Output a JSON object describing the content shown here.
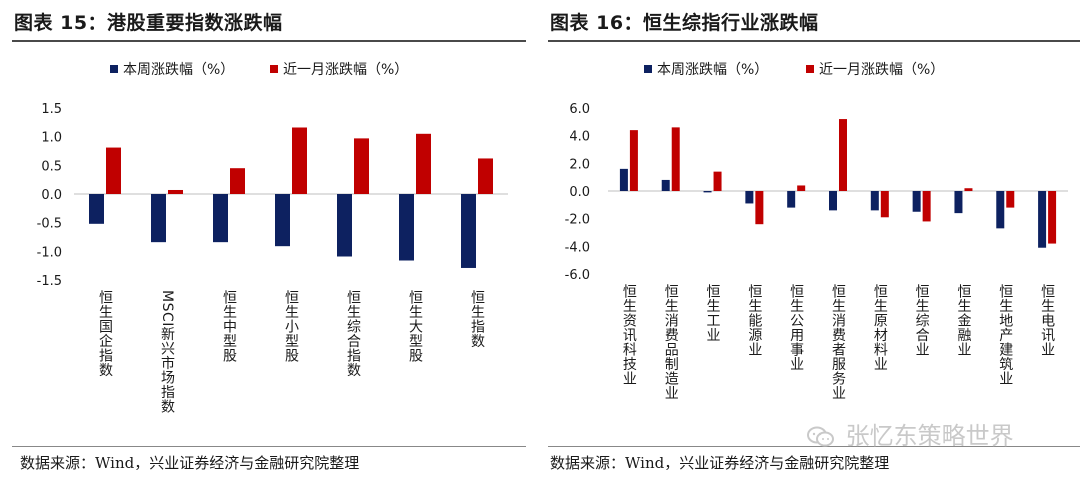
{
  "left_panel": {
    "title": "图表 15：港股重要指数涨跌幅",
    "source": "数据来源：Wind，兴业证券经济与金融研究院整理"
  },
  "right_panel": {
    "title": "图表 16：恒生综指行业涨跌幅",
    "source": "数据来源：Wind，兴业证券经济与金融研究院整理"
  },
  "watermark": {
    "text": "张忆东策略世界",
    "icon": "wechat-icon"
  },
  "colors": {
    "weekly": "#0d2160",
    "monthly": "#c00000"
  },
  "chart_data": [
    {
      "type": "bar",
      "title": "图表 15：港股重要指数涨跌幅",
      "categories": [
        "恒生国企指数",
        "MSCI新兴市场指数",
        "恒生中型股",
        "恒生小型股",
        "恒生综合指数",
        "恒生大型股",
        "恒生指数"
      ],
      "series": [
        {
          "name": "本周涨跌幅（%）",
          "values": [
            -0.52,
            -0.84,
            -0.84,
            -0.91,
            -1.09,
            -1.16,
            -1.29
          ]
        },
        {
          "name": "近一月涨跌幅（%）",
          "values": [
            0.81,
            0.07,
            0.45,
            1.16,
            0.97,
            1.05,
            0.62
          ]
        }
      ],
      "ylim": [
        -1.5,
        1.5
      ],
      "yticks": [
        -1.5,
        -1.0,
        -0.5,
        0.0,
        0.5,
        1.0,
        1.5
      ],
      "ytick_labels": [
        "-1.5",
        "-1.0",
        "-0.5",
        "0.0",
        "0.5",
        "1.0",
        "1.5"
      ],
      "xlabel": "",
      "ylabel": "",
      "grid": false,
      "legend": "top"
    },
    {
      "type": "bar",
      "title": "图表 16：恒生综指行业涨跌幅",
      "categories": [
        "恒生资讯科技业",
        "恒生消费品制造业",
        "恒生工业",
        "恒生能源业",
        "恒生公用事业",
        "恒生消费者服务业",
        "恒生原材料业",
        "恒生综合业",
        "恒生金融业",
        "恒生地产建筑业",
        "恒生电讯业"
      ],
      "series": [
        {
          "name": "本周涨跌幅（%）",
          "values": [
            1.6,
            0.8,
            -0.1,
            -0.9,
            -1.2,
            -1.4,
            -1.4,
            -1.5,
            -1.6,
            -2.7,
            -4.1
          ]
        },
        {
          "name": "近一月涨跌幅（%）",
          "values": [
            4.4,
            4.6,
            1.4,
            -2.4,
            0.4,
            5.2,
            -1.9,
            -2.2,
            0.2,
            -1.2,
            -3.8
          ]
        }
      ],
      "ylim": [
        -6.0,
        6.0
      ],
      "yticks": [
        -6,
        -4,
        -2,
        0,
        2,
        4,
        6
      ],
      "ytick_labels": [
        "-6.0",
        "-4.0",
        "-2.0",
        "0.0",
        "2.0",
        "4.0",
        "6.0"
      ],
      "xlabel": "",
      "ylabel": "",
      "grid": false,
      "legend": "top"
    }
  ]
}
